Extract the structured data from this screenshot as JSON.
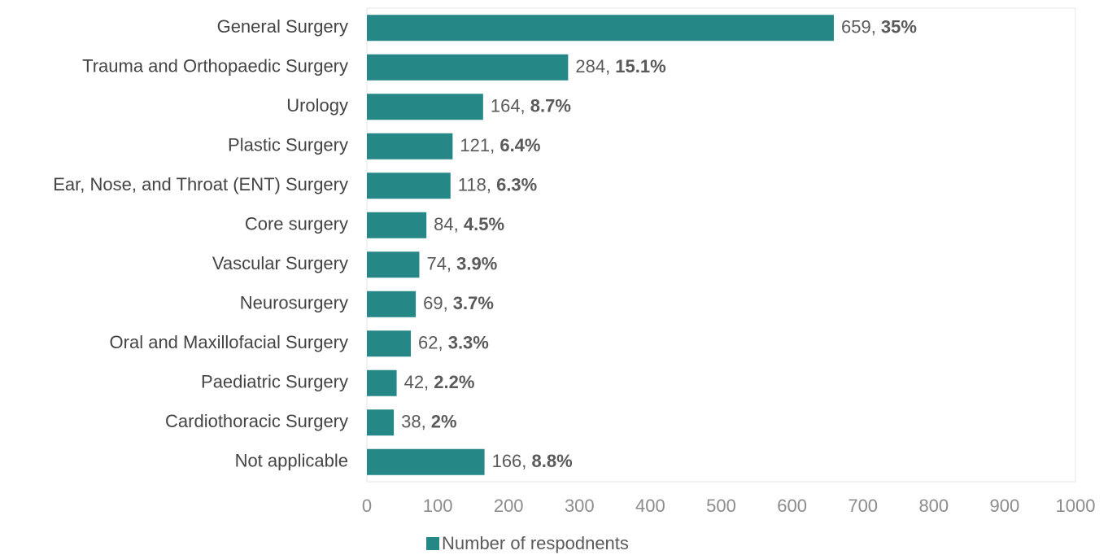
{
  "chart_data": {
    "type": "bar",
    "orientation": "horizontal",
    "categories": [
      "General Surgery",
      "Trauma and Orthopaedic Surgery",
      "Urology",
      "Plastic Surgery",
      "Ear, Nose, and Throat (ENT) Surgery",
      "Core surgery",
      "Vascular Surgery",
      "Neurosurgery",
      "Oral and Maxillofacial Surgery",
      "Paediatric Surgery",
      "Cardiothoracic Surgery",
      "Not applicable"
    ],
    "series": [
      {
        "name": "Number of respodnents",
        "color": "#268787",
        "values": [
          659,
          284,
          164,
          121,
          118,
          84,
          74,
          69,
          62,
          42,
          38,
          166
        ],
        "value_labels": [
          "659, 35%",
          "284, 15.1%",
          "164, 8.7%",
          "121, 6.4%",
          "118, 6.3%",
          "84, 4.5%",
          "74, 3.9%",
          "69, 3.7%",
          "62, 3.3%",
          "42, 2.2%",
          "38, 2%",
          "166, 8.8%"
        ]
      }
    ],
    "xlim": [
      0,
      1000
    ],
    "xticks": [
      0,
      100,
      200,
      300,
      400,
      500,
      600,
      700,
      800,
      900,
      1000
    ],
    "grid": false,
    "legend": "bottom"
  }
}
